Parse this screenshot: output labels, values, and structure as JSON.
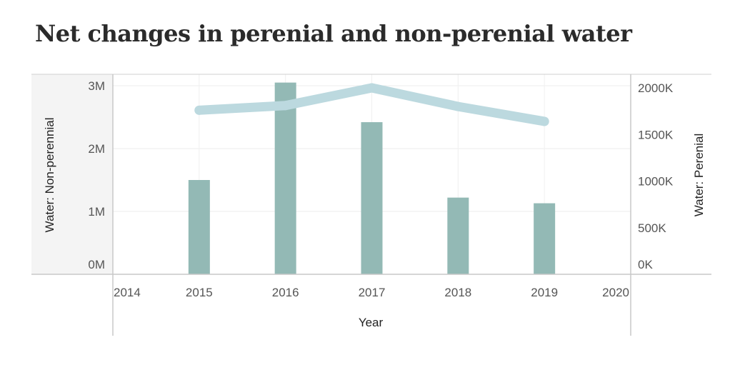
{
  "title": "Net changes in perenial and non-perenial water",
  "chart_data": {
    "type": "bar",
    "x": [
      2015,
      2016,
      2017,
      2018,
      2019
    ],
    "xlabel": "Year",
    "xticks": [
      "2014",
      "2015",
      "2016",
      "2017",
      "2018",
      "2019",
      "2020"
    ],
    "xlim": [
      2014,
      2020
    ],
    "series": [
      {
        "name": "Water: Non-perennial",
        "type": "bar",
        "axis": "left",
        "values": [
          1500000,
          3050000,
          2420000,
          1220000,
          1130000
        ],
        "color": "#93b9b5"
      },
      {
        "name": "Water: Perennial",
        "type": "line",
        "axis": "right",
        "values": [
          1760000,
          1810000,
          2000000,
          1800000,
          1640000
        ],
        "color": "#bcd9df"
      }
    ],
    "ylabel_left": "Water: Non-perennial",
    "ylim_left": [
      0,
      3000000
    ],
    "yticks_left": [
      "0M",
      "1M",
      "2M",
      "3M"
    ],
    "ylabel_right": "Water: Perenial",
    "ylim_right": [
      0,
      2000000
    ],
    "yticks_right": [
      "0K",
      "500K",
      "1000K",
      "1500K",
      "2000K"
    ],
    "grid": true
  }
}
